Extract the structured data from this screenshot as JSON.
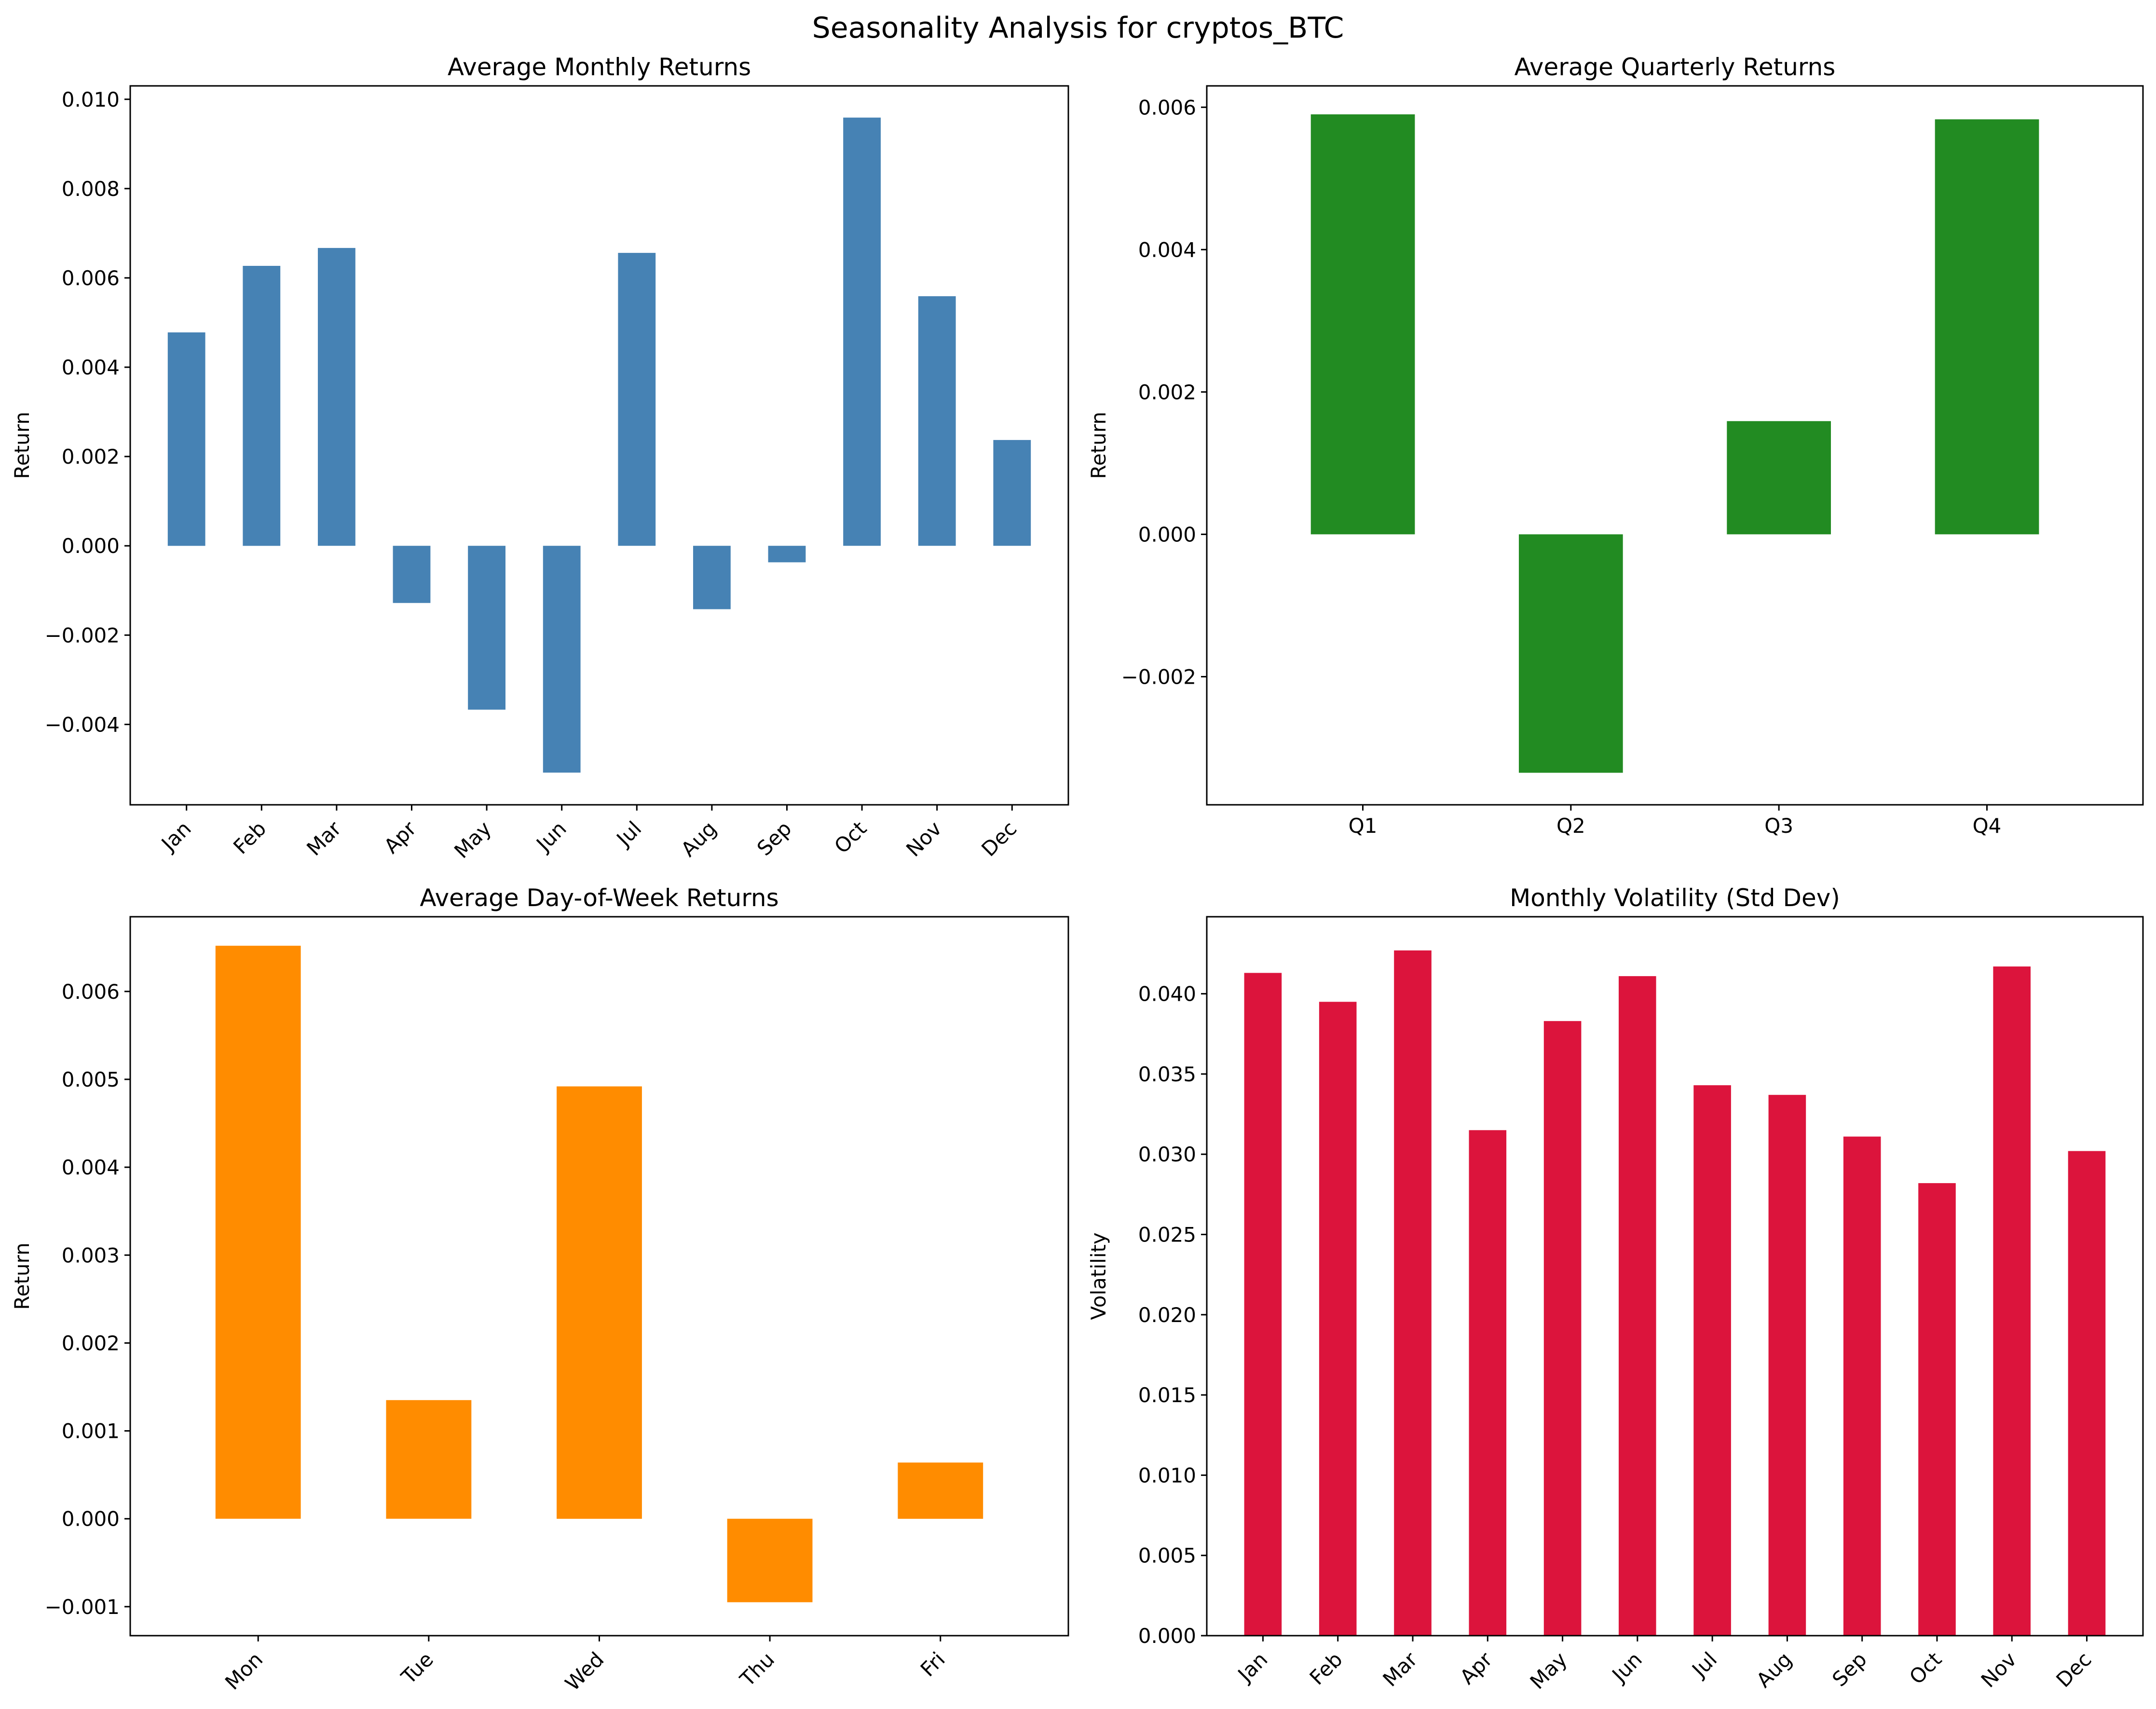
{
  "title": "Seasonality Analysis for cryptos_BTC",
  "chart_data": [
    {
      "type": "bar",
      "title": "Average Monthly Returns",
      "xlabel": "",
      "ylabel": "Return",
      "color": "#4682b4",
      "categories": [
        "Jan",
        "Feb",
        "Mar",
        "Apr",
        "May",
        "Jun",
        "Jul",
        "Aug",
        "Sep",
        "Oct",
        "Nov",
        "Dec"
      ],
      "values": [
        0.00478,
        0.00627,
        0.00667,
        -0.00128,
        -0.00367,
        -0.00508,
        0.00656,
        -0.00142,
        -0.00037,
        0.00959,
        0.00559,
        0.00237
      ],
      "ylim": [
        -0.0058,
        0.0103
      ],
      "yticks": [
        -0.004,
        -0.002,
        0.0,
        0.002,
        0.004,
        0.006,
        0.008,
        0.01
      ],
      "ytick_labels": [
        "−0.004",
        "−0.002",
        "0.000",
        "0.002",
        "0.004",
        "0.006",
        "0.008",
        "0.010"
      ],
      "rotate_xticks": true
    },
    {
      "type": "bar",
      "title": "Average Quarterly Returns",
      "xlabel": "",
      "ylabel": "Return",
      "color": "#228b22",
      "categories": [
        "Q1",
        "Q2",
        "Q3",
        "Q4"
      ],
      "values": [
        0.0059,
        -0.00335,
        0.00159,
        0.00583
      ],
      "ylim": [
        -0.0038,
        0.0063
      ],
      "yticks": [
        -0.002,
        0.0,
        0.002,
        0.004,
        0.006
      ],
      "ytick_labels": [
        "−0.002",
        "0.000",
        "0.002",
        "0.004",
        "0.006"
      ],
      "rotate_xticks": false
    },
    {
      "type": "bar",
      "title": "Average Day-of-Week Returns",
      "xlabel": "",
      "ylabel": "Return",
      "color": "#ff8c00",
      "categories": [
        "Mon",
        "Tue",
        "Wed",
        "Thu",
        "Fri"
      ],
      "values": [
        0.00652,
        0.00135,
        0.00492,
        -0.00095,
        0.00064
      ],
      "ylim": [
        -0.00133,
        0.00685
      ],
      "yticks": [
        -0.001,
        0.0,
        0.001,
        0.002,
        0.003,
        0.004,
        0.005,
        0.006
      ],
      "ytick_labels": [
        "−0.001",
        "0.000",
        "0.001",
        "0.002",
        "0.003",
        "0.004",
        "0.005",
        "0.006"
      ],
      "rotate_xticks": true
    },
    {
      "type": "bar",
      "title": "Monthly Volatility (Std Dev)",
      "xlabel": "",
      "ylabel": "Volatility",
      "color": "#dc143c",
      "categories": [
        "Jan",
        "Feb",
        "Mar",
        "Apr",
        "May",
        "Jun",
        "Jul",
        "Aug",
        "Sep",
        "Oct",
        "Nov",
        "Dec"
      ],
      "values": [
        0.0413,
        0.0395,
        0.0427,
        0.0315,
        0.0383,
        0.0411,
        0.0343,
        0.0337,
        0.0311,
        0.0282,
        0.0417,
        0.0302
      ],
      "ylim": [
        0.0,
        0.0448
      ],
      "yticks": [
        0.0,
        0.005,
        0.01,
        0.015,
        0.02,
        0.025,
        0.03,
        0.035,
        0.04
      ],
      "ytick_labels": [
        "0.000",
        "0.005",
        "0.010",
        "0.015",
        "0.020",
        "0.025",
        "0.030",
        "0.035",
        "0.040"
      ],
      "rotate_xticks": true
    }
  ]
}
